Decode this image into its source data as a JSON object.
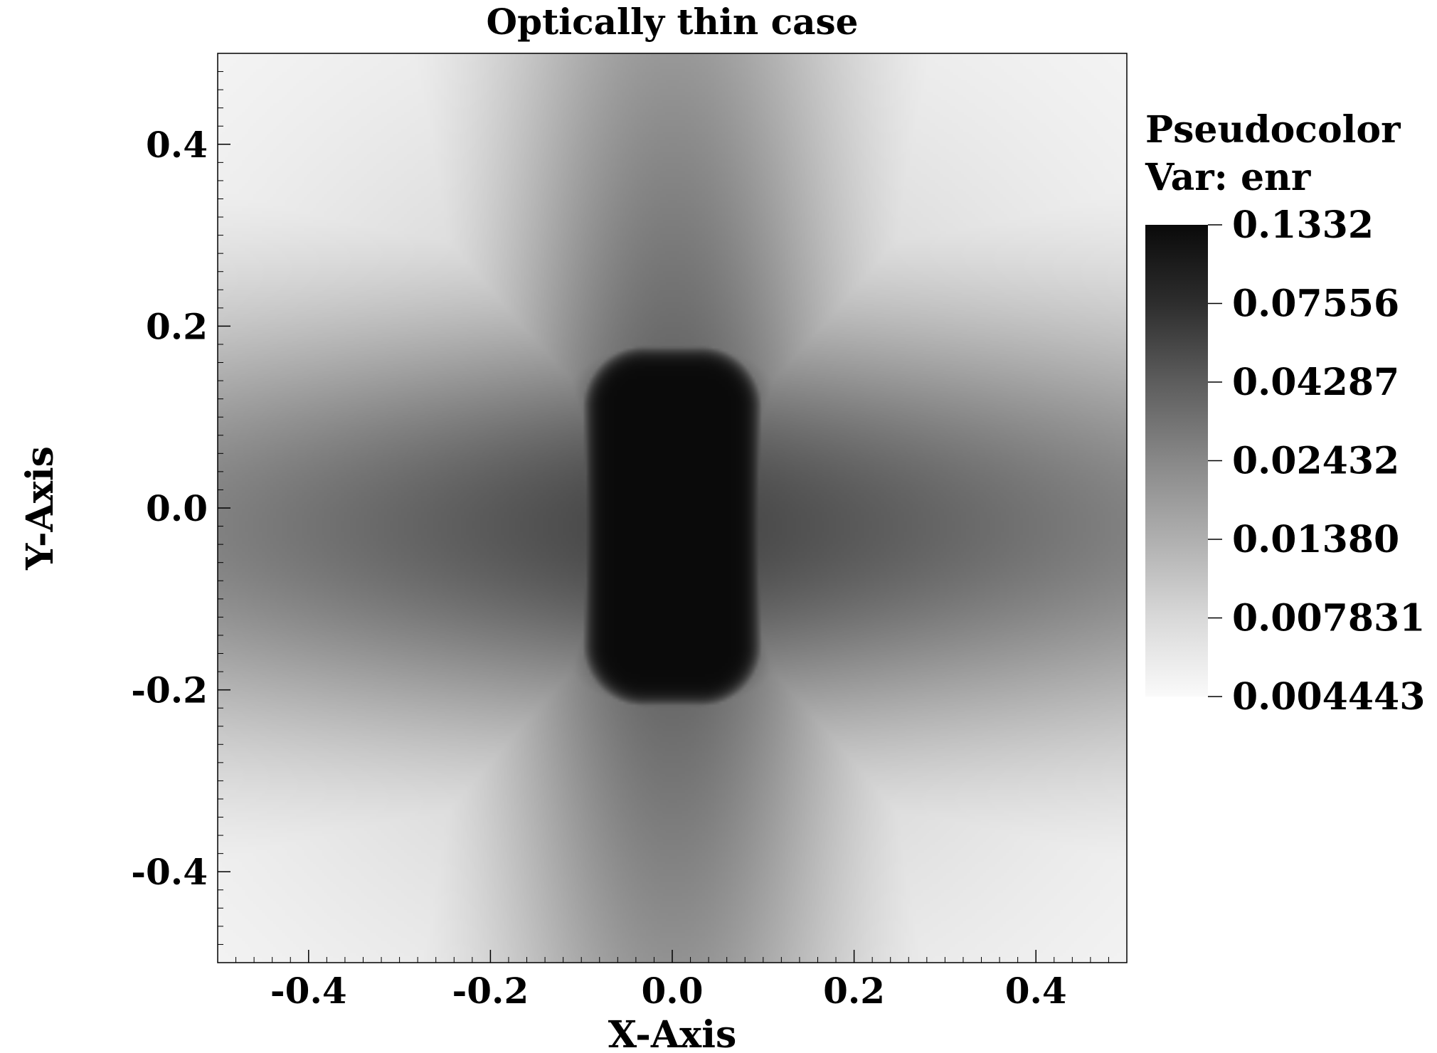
{
  "chart_data": {
    "type": "heatmap",
    "plot_type": "Pseudocolor",
    "title": "Optically thin case",
    "xlabel": "X-Axis",
    "ylabel": "Y-Axis",
    "xlim": [
      -0.5,
      0.5
    ],
    "ylim": [
      -0.5,
      0.5
    ],
    "x_ticks": [
      -0.4,
      -0.2,
      0.0,
      0.2,
      0.4
    ],
    "x_tick_labels": [
      "-0.4",
      "-0.2",
      "0.0",
      "0.2",
      "0.4"
    ],
    "y_ticks": [
      0.4,
      0.2,
      0.0,
      -0.2,
      -0.4
    ],
    "y_tick_labels": [
      "0.4",
      "0.2",
      "0.0",
      "-0.2",
      "-0.4"
    ],
    "colormap": "gray_r",
    "color_scale": "log",
    "legend": {
      "title_line1": "Pseudocolor",
      "title_line2": "Var: enr",
      "placement": "right",
      "min": 0.004443,
      "max": 0.1332,
      "tick_values": [
        0.1332,
        0.07556,
        0.04287,
        0.02432,
        0.0138,
        0.007831,
        0.004443
      ],
      "tick_labels": [
        "0.1332",
        "0.07556",
        "0.04287",
        "0.02432",
        "0.01380",
        "0.007831",
        "0.004443"
      ]
    },
    "field_description": {
      "core_value": 0.1332,
      "core_x_range": [
        -0.1,
        0.1
      ],
      "core_y_range": [
        -0.2,
        0.2
      ],
      "background_value": 0.004443
    },
    "grid": false
  }
}
